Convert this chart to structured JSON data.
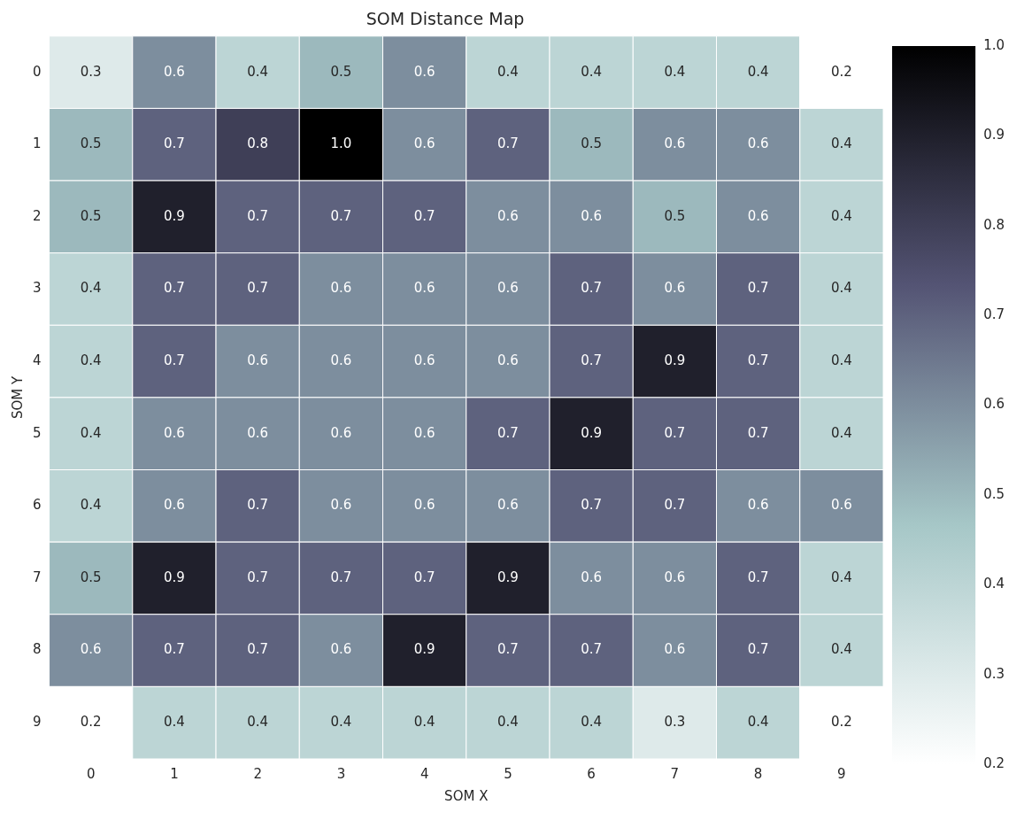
{
  "chart_data": {
    "type": "heatmap",
    "title": "SOM Distance Map",
    "xlabel": "SOM X",
    "ylabel": "SOM Y",
    "categories": [
      "0",
      "1",
      "2",
      "3",
      "4",
      "5",
      "6",
      "7",
      "8",
      "9"
    ],
    "y_categories": [
      "0",
      "1",
      "2",
      "3",
      "4",
      "5",
      "6",
      "7",
      "8",
      "9"
    ],
    "cells": [
      [
        0.3,
        0.6,
        0.4,
        0.5,
        0.6,
        0.4,
        0.4,
        0.4,
        0.4,
        0.2
      ],
      [
        0.5,
        0.7,
        0.8,
        1.0,
        0.6,
        0.7,
        0.5,
        0.6,
        0.6,
        0.4
      ],
      [
        0.5,
        0.9,
        0.7,
        0.7,
        0.7,
        0.6,
        0.6,
        0.5,
        0.6,
        0.4
      ],
      [
        0.4,
        0.7,
        0.7,
        0.6,
        0.6,
        0.6,
        0.7,
        0.6,
        0.7,
        0.4
      ],
      [
        0.4,
        0.7,
        0.6,
        0.6,
        0.6,
        0.6,
        0.7,
        0.9,
        0.7,
        0.4
      ],
      [
        0.4,
        0.6,
        0.6,
        0.6,
        0.6,
        0.7,
        0.9,
        0.7,
        0.7,
        0.4
      ],
      [
        0.4,
        0.6,
        0.7,
        0.6,
        0.6,
        0.6,
        0.7,
        0.7,
        0.6,
        0.6
      ],
      [
        0.5,
        0.9,
        0.7,
        0.7,
        0.7,
        0.9,
        0.6,
        0.6,
        0.7,
        0.4
      ],
      [
        0.6,
        0.7,
        0.7,
        0.6,
        0.9,
        0.7,
        0.7,
        0.6,
        0.7,
        0.4
      ],
      [
        0.2,
        0.4,
        0.4,
        0.4,
        0.4,
        0.4,
        0.4,
        0.3,
        0.4,
        0.2
      ]
    ],
    "cell_labels": [
      [
        "0.3",
        "0.6",
        "0.4",
        "0.5",
        "0.6",
        "0.4",
        "0.4",
        "0.4",
        "0.4",
        "0.2"
      ],
      [
        "0.5",
        "0.7",
        "0.8",
        "1.0",
        "0.6",
        "0.7",
        "0.5",
        "0.6",
        "0.6",
        "0.4"
      ],
      [
        "0.5",
        "0.9",
        "0.7",
        "0.7",
        "0.7",
        "0.6",
        "0.6",
        "0.5",
        "0.6",
        "0.4"
      ],
      [
        "0.4",
        "0.7",
        "0.7",
        "0.6",
        "0.6",
        "0.6",
        "0.7",
        "0.6",
        "0.7",
        "0.4"
      ],
      [
        "0.4",
        "0.7",
        "0.6",
        "0.6",
        "0.6",
        "0.6",
        "0.7",
        "0.9",
        "0.7",
        "0.4"
      ],
      [
        "0.4",
        "0.6",
        "0.6",
        "0.6",
        "0.6",
        "0.7",
        "0.9",
        "0.7",
        "0.7",
        "0.4"
      ],
      [
        "0.4",
        "0.6",
        "0.7",
        "0.6",
        "0.6",
        "0.6",
        "0.7",
        "0.7",
        "0.6",
        "0.6"
      ],
      [
        "0.5",
        "0.9",
        "0.7",
        "0.7",
        "0.7",
        "0.9",
        "0.6",
        "0.6",
        "0.7",
        "0.4"
      ],
      [
        "0.6",
        "0.7",
        "0.7",
        "0.6",
        "0.9",
        "0.7",
        "0.7",
        "0.6",
        "0.7",
        "0.4"
      ],
      [
        "0.2",
        "0.4",
        "0.4",
        "0.4",
        "0.4",
        "0.4",
        "0.4",
        "0.3",
        "0.4",
        "0.2"
      ]
    ],
    "colors": [
      "#ffffff",
      "#a6c7c7",
      "#545474",
      "#000000"
    ],
    "clim": [
      0.2,
      1.0
    ],
    "cticks": [
      0.2,
      0.3,
      0.4,
      0.5,
      0.6,
      0.7,
      0.8,
      0.9,
      {
        "value": 1.0,
        "label": "1.0"
      }
    ],
    "data_labels": true
  }
}
